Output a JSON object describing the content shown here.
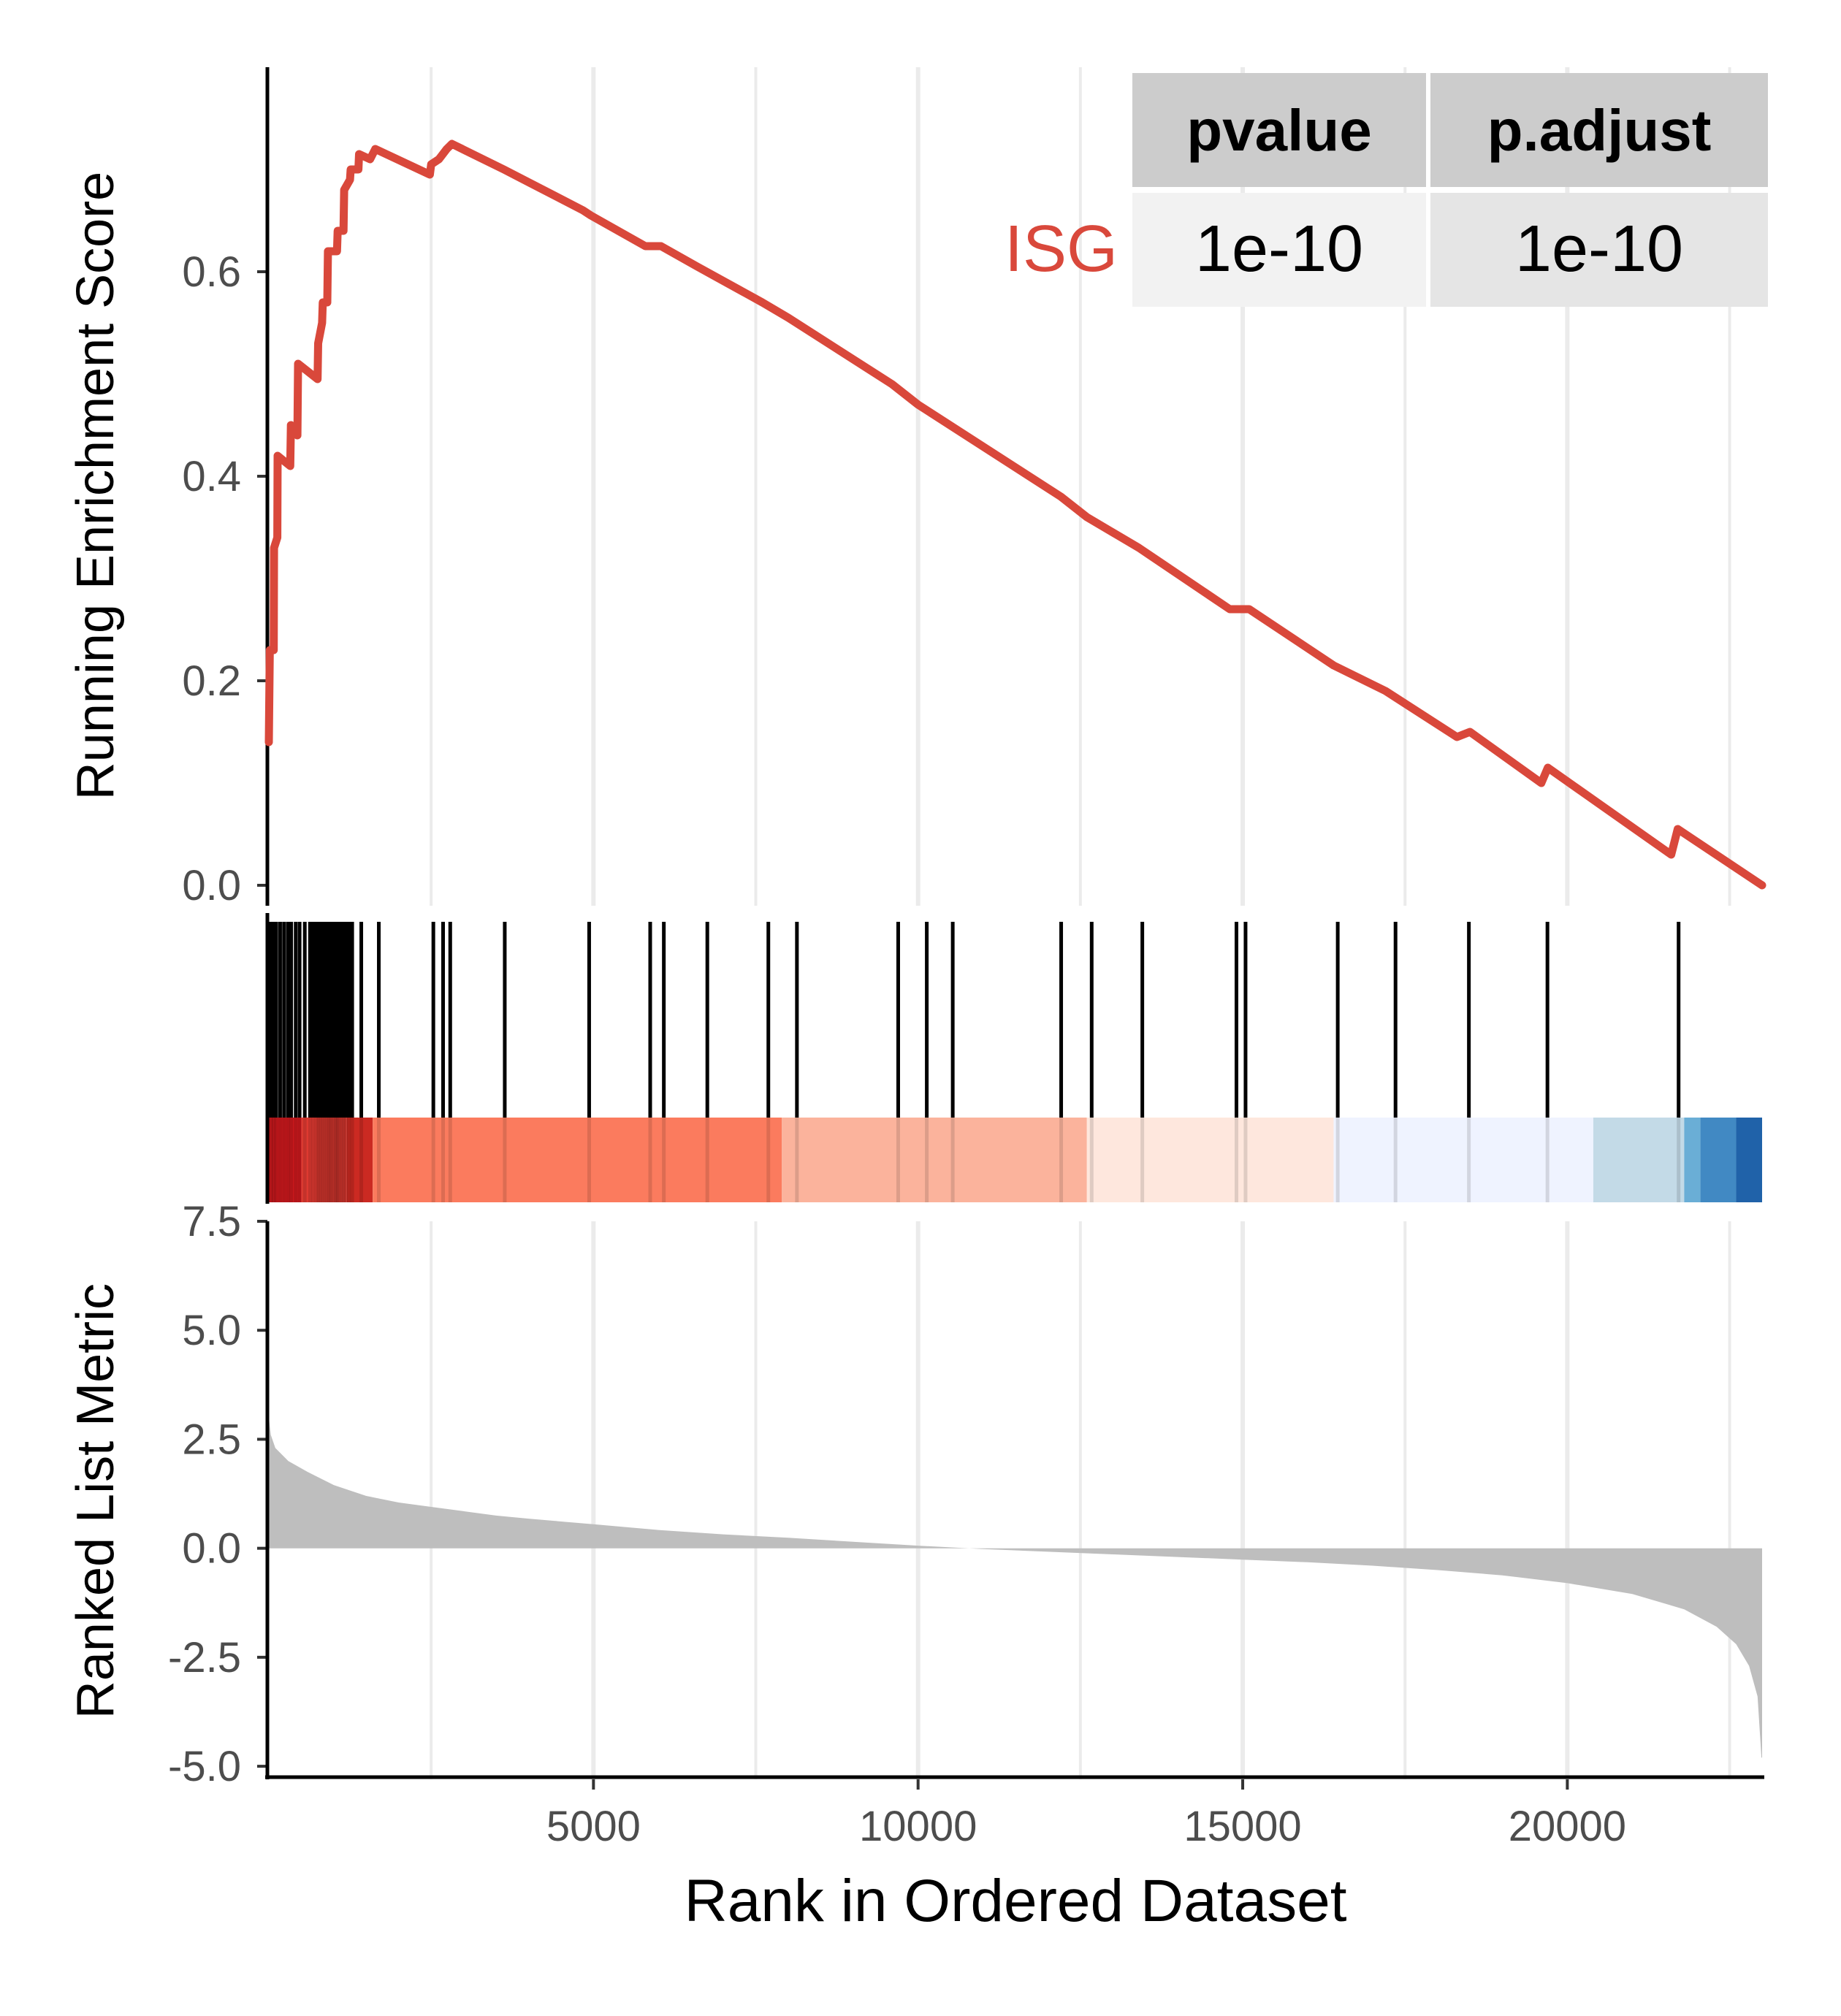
{
  "chart_data": {
    "type": "line",
    "x_range": [
      0,
      23000
    ],
    "x_ticks": [
      5000,
      10000,
      15000,
      20000
    ],
    "xlabel": "Rank in Ordered Dataset",
    "colors": {
      "es_line": "#D9483B",
      "hits": "#000000",
      "metric_area": "#BEBEBE",
      "grid": "#EBEBEB",
      "table_header": "#CCCCCC",
      "table_cell_1": "#F2F2F2",
      "table_cell_2": "#E5E5E5"
    },
    "table": {
      "headers": [
        "pvalue",
        "p.adjust"
      ],
      "row_label": "ISG",
      "values": [
        "1e-10",
        "1e-10"
      ]
    },
    "running_es": {
      "ylabel": "Running Enrichment Score",
      "ylim": [
        -0.02,
        0.8
      ],
      "y_ticks": [
        "0.0",
        "0.2",
        "0.4",
        "0.6"
      ],
      "series": [
        {
          "name": "ISG",
          "points": [
            [
              0,
              0.14
            ],
            [
              15,
              0.23
            ],
            [
              75,
              0.23
            ],
            [
              80,
              0.33
            ],
            [
              130,
              0.34
            ],
            [
              135,
              0.42
            ],
            [
              330,
              0.41
            ],
            [
              340,
              0.45
            ],
            [
              440,
              0.44
            ],
            [
              450,
              0.51
            ],
            [
              750,
              0.495
            ],
            [
              760,
              0.53
            ],
            [
              820,
              0.55
            ],
            [
              830,
              0.57
            ],
            [
              900,
              0.57
            ],
            [
              910,
              0.62
            ],
            [
              1050,
              0.62
            ],
            [
              1060,
              0.64
            ],
            [
              1150,
              0.64
            ],
            [
              1160,
              0.68
            ],
            [
              1250,
              0.69
            ],
            [
              1260,
              0.7
            ],
            [
              1380,
              0.7
            ],
            [
              1390,
              0.715
            ],
            [
              1560,
              0.71
            ],
            [
              1640,
              0.72
            ],
            [
              2480,
              0.695
            ],
            [
              2500,
              0.705
            ],
            [
              2620,
              0.71
            ],
            [
              2740,
              0.72
            ],
            [
              2820,
              0.725
            ],
            [
              3620,
              0.7
            ],
            [
              4840,
              0.66
            ],
            [
              4960,
              0.655
            ],
            [
              5800,
              0.625
            ],
            [
              6040,
              0.625
            ],
            [
              6600,
              0.605
            ],
            [
              7600,
              0.57
            ],
            [
              8000,
              0.555
            ],
            [
              9600,
              0.49
            ],
            [
              10000,
              0.47
            ],
            [
              12200,
              0.38
            ],
            [
              12600,
              0.36
            ],
            [
              13400,
              0.33
            ],
            [
              14800,
              0.27
            ],
            [
              15100,
              0.27
            ],
            [
              16400,
              0.215
            ],
            [
              17200,
              0.19
            ],
            [
              18300,
              0.145
            ],
            [
              18500,
              0.15
            ],
            [
              19600,
              0.1
            ],
            [
              19700,
              0.115
            ],
            [
              21600,
              0.03
            ],
            [
              21700,
              0.055
            ],
            [
              23000,
              0.0
            ]
          ]
        }
      ]
    },
    "hits": {
      "positions": [
        0,
        40,
        80,
        140,
        200,
        260,
        310,
        380,
        440,
        520,
        600,
        650,
        700,
        730,
        760,
        790,
        820,
        850,
        880,
        905,
        930,
        960,
        990,
        1010,
        1030,
        1060,
        1090,
        1120,
        1150,
        1200,
        1250,
        1390,
        1660,
        2500,
        2650,
        2760,
        3600,
        4900,
        5840,
        6050,
        6720,
        7660,
        8100,
        9660,
        10100,
        10500,
        12170,
        12640,
        13420,
        14870,
        15010,
        16430,
        17320,
        18450,
        19660,
        21680
      ],
      "color_bands": [
        {
          "start": 0,
          "end": 500,
          "color": "#CB181D"
        },
        {
          "start": 500,
          "end": 1200,
          "color": "#E03A31"
        },
        {
          "start": 1200,
          "end": 1600,
          "color": "#CB2A22"
        },
        {
          "start": 1600,
          "end": 7900,
          "color": "#FB7B5E"
        },
        {
          "start": 7900,
          "end": 12600,
          "color": "#FBB39C"
        },
        {
          "start": 12600,
          "end": 16400,
          "color": "#FEE7DD"
        },
        {
          "start": 16400,
          "end": 20400,
          "color": "#EFF3FF"
        },
        {
          "start": 20400,
          "end": 21800,
          "color": "#C3DAE7"
        },
        {
          "start": 21800,
          "end": 22050,
          "color": "#6AAED6"
        },
        {
          "start": 22050,
          "end": 22600,
          "color": "#4189C3"
        },
        {
          "start": 22600,
          "end": 23000,
          "color": "#2062A9"
        }
      ]
    },
    "ranked_metric": {
      "ylabel": "Ranked List Metric",
      "ylim": [
        -5.3,
        7.5
      ],
      "y_ticks": [
        "-5.0",
        "-2.5",
        "0.0",
        "2.5",
        "5.0",
        "7.5"
      ],
      "points": [
        [
          0,
          3.0
        ],
        [
          30,
          2.6
        ],
        [
          100,
          2.3
        ],
        [
          300,
          2.0
        ],
        [
          600,
          1.75
        ],
        [
          1000,
          1.45
        ],
        [
          1500,
          1.2
        ],
        [
          2000,
          1.05
        ],
        [
          2500,
          0.95
        ],
        [
          3000,
          0.85
        ],
        [
          3500,
          0.75
        ],
        [
          4000,
          0.68
        ],
        [
          5000,
          0.55
        ],
        [
          6000,
          0.42
        ],
        [
          7000,
          0.32
        ],
        [
          8000,
          0.24
        ],
        [
          9000,
          0.15
        ],
        [
          10000,
          0.06
        ],
        [
          11000,
          -0.02
        ],
        [
          12000,
          -0.08
        ],
        [
          13000,
          -0.14
        ],
        [
          14000,
          -0.2
        ],
        [
          15000,
          -0.26
        ],
        [
          16000,
          -0.32
        ],
        [
          17000,
          -0.4
        ],
        [
          18000,
          -0.5
        ],
        [
          19000,
          -0.62
        ],
        [
          20000,
          -0.8
        ],
        [
          21000,
          -1.05
        ],
        [
          21800,
          -1.4
        ],
        [
          22300,
          -1.8
        ],
        [
          22600,
          -2.2
        ],
        [
          22800,
          -2.7
        ],
        [
          22930,
          -3.4
        ],
        [
          22990,
          -4.8
        ],
        [
          23000,
          -4.8
        ]
      ]
    }
  }
}
